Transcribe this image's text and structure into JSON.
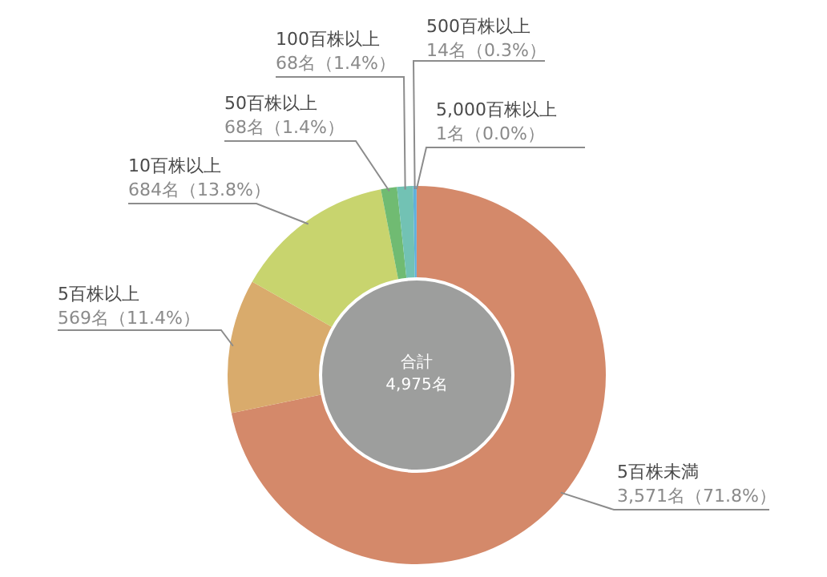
{
  "chart_data": {
    "type": "donut",
    "categories": [
      "5百株未満",
      "5百株以上",
      "10百株以上",
      "50百株以上",
      "100百株以上",
      "500百株以上",
      "5,000百株以上"
    ],
    "values": [
      3571,
      569,
      684,
      68,
      68,
      14,
      1
    ],
    "colors": [
      "#d4896a",
      "#d9ab6c",
      "#c8d46e",
      "#70bb72",
      "#72c2b4",
      "#5fb0dc",
      "#5b8fd0"
    ],
    "value_labels": [
      "3,571名（71.8%）",
      "569名（11.4%）",
      "684名（13.8%）",
      "68名（1.4%）",
      "68名（1.4%）",
      "14名（0.3%）",
      "1名（0.0%）"
    ],
    "annotations": [
      "合計",
      "4,975名"
    ]
  }
}
